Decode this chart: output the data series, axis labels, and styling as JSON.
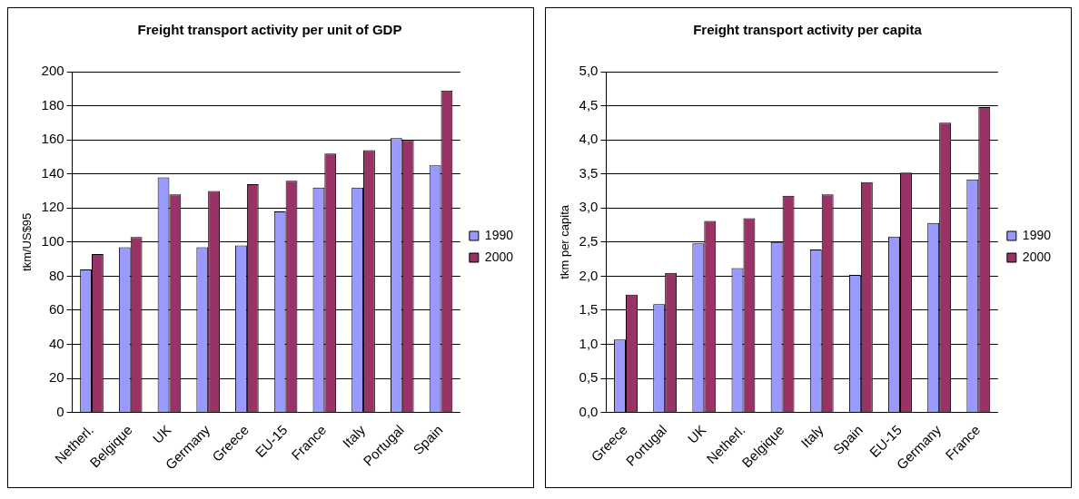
{
  "chart_data": [
    {
      "type": "bar",
      "title": "Freight transport activity per unit of GDP",
      "ylabel": "tkm/US$95",
      "categories": [
        "Netherl.",
        "Belgique",
        "UK",
        "Germany",
        "Greece",
        "EU-15",
        "France",
        "Italy",
        "Portugal",
        "Spain"
      ],
      "series": [
        {
          "name": "1990",
          "color": "#9999ff",
          "values": [
            84,
            97,
            138,
            97,
            98,
            118,
            132,
            132,
            161,
            145
          ]
        },
        {
          "name": "2000",
          "color": "#993366",
          "values": [
            93,
            103,
            128,
            130,
            134,
            136,
            152,
            154,
            160,
            189
          ]
        }
      ],
      "ylim": [
        0,
        200
      ],
      "yticks": [
        0,
        20,
        40,
        60,
        80,
        100,
        120,
        140,
        160,
        180,
        200
      ],
      "grid": "y",
      "legend": "right"
    },
    {
      "type": "bar",
      "title": "Freight transport activity per capita",
      "ylabel": "tkm per capita",
      "categories": [
        "Greece",
        "Portugal",
        "UK",
        "Netherl.",
        "Belgique",
        "Italy",
        "Spain",
        "EU-15",
        "Germany",
        "France"
      ],
      "series": [
        {
          "name": "1990",
          "color": "#9999ff",
          "values": [
            1.07,
            1.59,
            2.48,
            2.12,
            2.5,
            2.39,
            2.02,
            2.58,
            2.78,
            3.42
          ]
        },
        {
          "name": "2000",
          "color": "#993366",
          "values": [
            1.73,
            2.05,
            2.81,
            2.85,
            3.18,
            3.2,
            3.38,
            3.52,
            4.25,
            4.48
          ]
        }
      ],
      "ylim": [
        0,
        5
      ],
      "yticks": [
        {
          "value": 0,
          "label": "0,0"
        },
        {
          "value": 0.5,
          "label": "0,5"
        },
        {
          "value": 1,
          "label": "1,0"
        },
        {
          "value": 1.5,
          "label": "1,5"
        },
        {
          "value": 2,
          "label": "2,0"
        },
        {
          "value": 2.5,
          "label": "2,5"
        },
        {
          "value": 3,
          "label": "3,0"
        },
        {
          "value": 3.5,
          "label": "3,5"
        },
        {
          "value": 4,
          "label": "4,0"
        },
        {
          "value": 4.5,
          "label": "4,5"
        },
        {
          "value": 5,
          "label": "5,0"
        }
      ],
      "grid": "y",
      "legend": "right"
    }
  ]
}
